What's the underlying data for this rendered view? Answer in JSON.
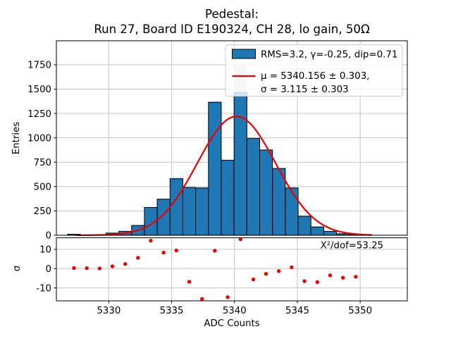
{
  "title": {
    "line1": "Pedestal:",
    "line2": "Run 27, Board ID E190324, CH 28, lo gain, 50Ω"
  },
  "legend": {
    "hist_label": "RMS=3.2, γ=-0.25, dip=0.71",
    "fit_label_line1": "μ = 5340.156 ± 0.303,",
    "fit_label_line2": "σ = 3.115 ± 0.303"
  },
  "annotation": "X²/dof=53.25",
  "axes": {
    "main_ylabel": "Entries",
    "res_ylabel": "σ",
    "xlabel": "ADC Counts"
  },
  "colors": {
    "bar_fill": "#1f77b4",
    "bar_edge": "#000000",
    "shadow_fill": "#c7ddec",
    "fit_line": "#ee0000",
    "dot": "#ee0000",
    "grid": "#c4c4c4",
    "spine": "#000000",
    "legend_border": "#cccccc"
  },
  "chart_data": [
    {
      "type": "bar",
      "subtype": "histogram-with-gaussian-fit",
      "title": "Pedestal: Run 27, Board ID E190324, CH 28, lo gain, 50Ω",
      "ylabel": "Entries",
      "bin_start": 5326.72,
      "bin_width": 1.019,
      "values": [
        10,
        2,
        2,
        22,
        40,
        100,
        285,
        370,
        580,
        490,
        485,
        1365,
        770,
        1465,
        995,
        875,
        685,
        485,
        195,
        85,
        40,
        15,
        7
      ],
      "shadow_values": [
        12,
        3,
        3,
        25,
        45,
        108,
        293,
        378,
        593,
        498,
        494,
        1374,
        776,
        1750,
        1003,
        881,
        691,
        495,
        206,
        91,
        45,
        17,
        9
      ],
      "fit": {
        "shape": "gaussian",
        "mu": 5340.156,
        "mu_err": 0.303,
        "sigma": 3.115,
        "sigma_err": 0.303,
        "amplitude": 1220,
        "x_range": [
          5327.4,
          5351.0
        ]
      },
      "stats": {
        "rms": 3.2,
        "gamma": -0.25,
        "dip": 0.71,
        "chi2_per_dof": 53.25
      },
      "xlim": [
        5325.83,
        5353.75
      ],
      "ylim": [
        0,
        1996
      ],
      "xticks": [
        5330,
        5335,
        5340,
        5345,
        5350
      ],
      "yticks": [
        0,
        250,
        500,
        750,
        1000,
        1250,
        1500,
        1750
      ],
      "grid": true,
      "legend_position": "upper right"
    },
    {
      "type": "scatter",
      "subtype": "fit-residuals",
      "ylabel": "σ",
      "xlabel": "ADC Counts",
      "x": [
        5327.23,
        5328.25,
        5329.27,
        5330.29,
        5331.31,
        5332.32,
        5333.34,
        5334.36,
        5335.38,
        5336.4,
        5337.42,
        5338.44,
        5339.46,
        5340.48,
        5341.5,
        5342.51,
        5343.53,
        5344.55,
        5345.57,
        5346.59,
        5347.61,
        5348.63,
        5349.65
      ],
      "y": [
        0.3,
        0.25,
        0.1,
        1.2,
        2.4,
        5.6,
        14.5,
        8.3,
        9.4,
        -6.8,
        -15.7,
        9.3,
        -14.8,
        15.3,
        -5.6,
        -2.7,
        -1.3,
        0.7,
        -6.5,
        -7.0,
        -3.5,
        -4.7,
        -4.2
      ],
      "xlim": [
        5325.83,
        5353.75
      ],
      "ylim": [
        -16.7,
        16.0
      ],
      "yticks": [
        -10,
        0,
        10
      ],
      "xticks": [
        5330,
        5335,
        5340,
        5345,
        5350
      ],
      "grid": true,
      "annotation": "X²/dof=53.25"
    }
  ]
}
